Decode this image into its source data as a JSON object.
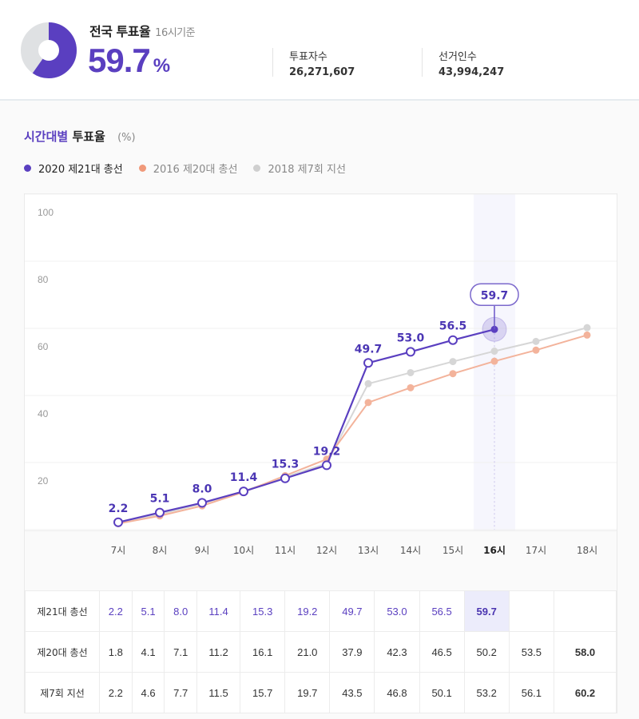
{
  "summary": {
    "title": "전국 투표율",
    "as_of": "16시기준",
    "rate": "59.7",
    "rate_unit": "%",
    "voters_label": "투표자수",
    "voters_value": "26,271,607",
    "electorate_label": "선거인수",
    "electorate_value": "43,994,247",
    "donut_fill_pct": 59.7
  },
  "section": {
    "title_accent": "시간대별",
    "title_rest": "투표율",
    "unit": "(%)"
  },
  "legend": [
    {
      "label": "2020 제21대 총선",
      "color": "#5a3fc0",
      "active": true
    },
    {
      "label": "2016 제20대 총선",
      "color": "#f0a080",
      "active": false
    },
    {
      "label": "2018 제7회 지선",
      "color": "#cccccc",
      "active": false
    }
  ],
  "colors": {
    "accent": "#5a3fc0",
    "series2016": "#f3b39b",
    "series2018": "#d6d6d6",
    "highlight": "#ececfb"
  },
  "chart_data": {
    "type": "line",
    "title": "시간대별 투표율 (%)",
    "xlabel": "",
    "ylabel": "%",
    "ylim": [
      0,
      100
    ],
    "yticks": [
      20,
      40,
      60,
      80,
      100
    ],
    "grid": true,
    "legend_position": "top",
    "categories": [
      "7시",
      "8시",
      "9시",
      "10시",
      "11시",
      "12시",
      "13시",
      "14시",
      "15시",
      "16시",
      "17시",
      "18시"
    ],
    "highlight_category": "16시",
    "series": [
      {
        "name": "2020 제21대 총선",
        "values": [
          2.2,
          5.1,
          8.0,
          11.4,
          15.3,
          19.2,
          49.7,
          53.0,
          56.5,
          59.7,
          null,
          null
        ]
      },
      {
        "name": "2016 제20대 총선",
        "values": [
          1.8,
          4.1,
          7.1,
          11.2,
          16.1,
          21.0,
          37.9,
          42.3,
          46.5,
          50.2,
          53.5,
          58.0
        ]
      },
      {
        "name": "2018 제7회 지선",
        "values": [
          2.2,
          4.6,
          7.7,
          11.5,
          15.7,
          19.7,
          43.5,
          46.8,
          50.1,
          53.2,
          56.1,
          60.2
        ]
      }
    ],
    "annotations": [
      {
        "category": "16시",
        "label": "59.7"
      }
    ]
  },
  "table": {
    "rows": [
      {
        "label": "제21대 총선",
        "cells": [
          "2.2",
          "5.1",
          "8.0",
          "11.4",
          "15.3",
          "19.2",
          "49.7",
          "53.0",
          "56.5",
          "59.7",
          "",
          ""
        ]
      },
      {
        "label": "제20대 총선",
        "cells": [
          "1.8",
          "4.1",
          "7.1",
          "11.2",
          "16.1",
          "21.0",
          "37.9",
          "42.3",
          "46.5",
          "50.2",
          "53.5",
          "58.0"
        ]
      },
      {
        "label": "제7회 지선",
        "cells": [
          "2.2",
          "4.6",
          "7.7",
          "11.5",
          "15.7",
          "19.7",
          "43.5",
          "46.8",
          "50.1",
          "53.2",
          "56.1",
          "60.2"
        ]
      }
    ]
  }
}
